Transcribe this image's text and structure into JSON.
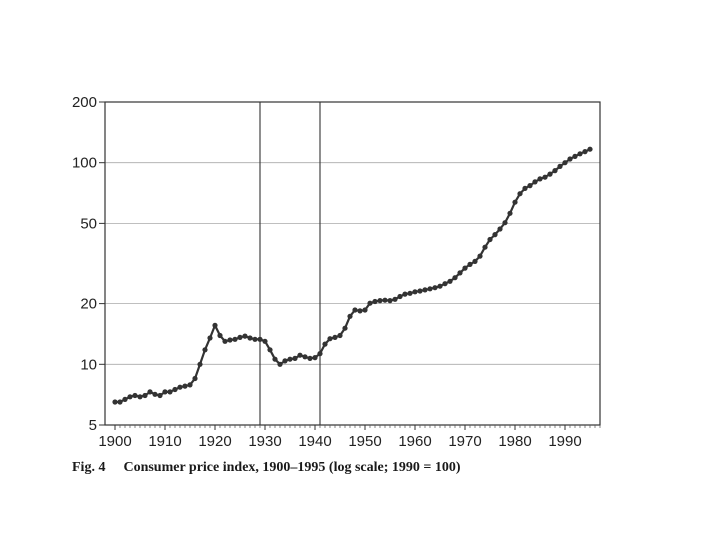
{
  "caption": {
    "fig_label": "Fig. 4",
    "title": "Consumer price index, 1900–1995 (log scale; 1990 = 100)"
  },
  "chart_data": {
    "type": "line",
    "title": "Consumer price index, 1900–1995 (log scale; 1990 = 100)",
    "xlabel": "",
    "ylabel": "",
    "xlim": [
      1898,
      1997
    ],
    "ylim": [
      5,
      200
    ],
    "y_scale": "log",
    "grid": true,
    "x_ticks": [
      1900,
      1910,
      1920,
      1930,
      1940,
      1950,
      1960,
      1970,
      1980,
      1990
    ],
    "y_ticks": [
      5,
      10,
      20,
      50,
      100,
      200
    ],
    "reference_lines_x": [
      1929,
      1941
    ],
    "series": [
      {
        "color": "#333333",
        "x": [
          1900,
          1901,
          1902,
          1903,
          1904,
          1905,
          1906,
          1907,
          1908,
          1909,
          1910,
          1911,
          1912,
          1913,
          1914,
          1915,
          1916,
          1917,
          1918,
          1919,
          1920,
          1921,
          1922,
          1923,
          1924,
          1925,
          1926,
          1927,
          1928,
          1929,
          1930,
          1931,
          1932,
          1933,
          1934,
          1935,
          1936,
          1937,
          1938,
          1939,
          1940,
          1941,
          1942,
          1943,
          1944,
          1945,
          1946,
          1947,
          1948,
          1949,
          1950,
          1951,
          1952,
          1953,
          1954,
          1955,
          1956,
          1957,
          1958,
          1959,
          1960,
          1961,
          1962,
          1963,
          1964,
          1965,
          1966,
          1967,
          1968,
          1969,
          1970,
          1971,
          1972,
          1973,
          1974,
          1975,
          1976,
          1977,
          1978,
          1979,
          1980,
          1981,
          1982,
          1983,
          1984,
          1985,
          1986,
          1987,
          1988,
          1989,
          1990,
          1991,
          1992,
          1993,
          1994,
          1995
        ],
        "values": [
          6.5,
          6.5,
          6.7,
          6.9,
          7.0,
          6.9,
          7.0,
          7.3,
          7.1,
          7.0,
          7.3,
          7.3,
          7.5,
          7.7,
          7.8,
          7.9,
          8.5,
          10.0,
          11.8,
          13.5,
          15.6,
          13.9,
          13.0,
          13.2,
          13.3,
          13.6,
          13.8,
          13.5,
          13.3,
          13.3,
          13.0,
          11.8,
          10.6,
          10.0,
          10.4,
          10.6,
          10.7,
          11.1,
          10.9,
          10.7,
          10.8,
          11.3,
          12.6,
          13.4,
          13.6,
          13.9,
          15.1,
          17.3,
          18.6,
          18.4,
          18.6,
          20.1,
          20.5,
          20.7,
          20.8,
          20.7,
          21.0,
          21.7,
          22.3,
          22.5,
          22.9,
          23.1,
          23.4,
          23.7,
          24.0,
          24.4,
          25.1,
          25.8,
          26.9,
          28.4,
          30.0,
          31.3,
          32.4,
          34.4,
          38.1,
          41.6,
          44.0,
          46.9,
          50.4,
          56.1,
          63.7,
          70.2,
          74.6,
          77.0,
          80.3,
          83.1,
          84.7,
          87.8,
          91.4,
          95.8,
          100,
          104.3,
          107.5,
          110.7,
          113.5,
          116.7
        ]
      }
    ]
  }
}
